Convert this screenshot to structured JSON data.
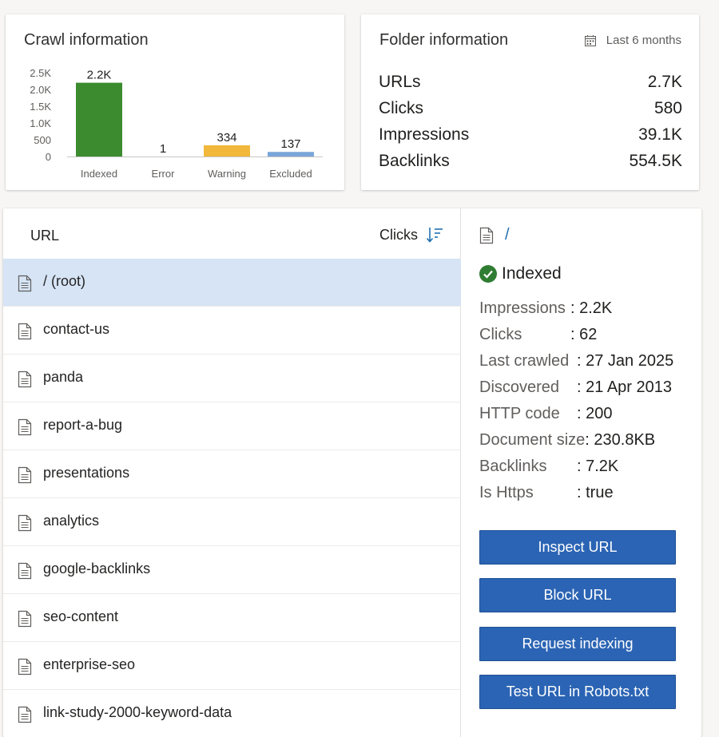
{
  "crawl": {
    "title": "Crawl information"
  },
  "chart_data": {
    "type": "bar",
    "categories": [
      "Indexed",
      "Error",
      "Warning",
      "Excluded"
    ],
    "values": [
      2200,
      1,
      334,
      137
    ],
    "data_labels": [
      "2.2K",
      "1",
      "334",
      "137"
    ],
    "colors": [
      "#3d8b2f",
      "#3d8b2f",
      "#f2b83c",
      "#7aa6d9"
    ],
    "yticks": [
      "0",
      "500",
      "1.0K",
      "1.5K",
      "2.0K",
      "2.5K"
    ],
    "ylim": [
      0,
      2500
    ],
    "title": "",
    "xlabel": "",
    "ylabel": "",
    "legend": "none",
    "grid": false
  },
  "folder": {
    "title": "Folder information",
    "date_filter": "Last 6 months",
    "rows": [
      {
        "label": "URLs",
        "value": "2.7K"
      },
      {
        "label": "Clicks",
        "value": "580"
      },
      {
        "label": "Impressions",
        "value": "39.1K"
      },
      {
        "label": "Backlinks",
        "value": "554.5K"
      }
    ]
  },
  "list": {
    "header_url": "URL",
    "header_clicks": "Clicks",
    "rows": [
      {
        "label": "/ (root)"
      },
      {
        "label": "contact-us"
      },
      {
        "label": "panda"
      },
      {
        "label": "report-a-bug"
      },
      {
        "label": "presentations"
      },
      {
        "label": "analytics"
      },
      {
        "label": "google-backlinks"
      },
      {
        "label": "seo-content"
      },
      {
        "label": "enterprise-seo"
      },
      {
        "label": "link-study-2000-keyword-data"
      }
    ]
  },
  "detail": {
    "path": "/",
    "status": "Indexed",
    "status_color": "#2f7d32",
    "props": [
      {
        "key": "Impressions",
        "value": ": 2.2K"
      },
      {
        "key": "Clicks",
        "value": ": 62"
      },
      {
        "key": "Last crawled",
        "value": ": 27 Jan 2025"
      },
      {
        "key": "Discovered",
        "value": ": 21 Apr 2013"
      },
      {
        "key": "HTTP code",
        "value": ": 200"
      },
      {
        "key": "Document size",
        "value": ": 230.8KB"
      },
      {
        "key": "Backlinks",
        "value": ": 7.2K"
      },
      {
        "key": "Is Https",
        "value": ": true"
      }
    ],
    "buttons": {
      "inspect": "Inspect URL",
      "block": "Block URL",
      "request": "Request indexing",
      "robots": "Test URL in Robots.txt"
    }
  },
  "colors": {
    "accent": "#2b64b4",
    "selected_row": "#d6e4f5",
    "link": "#1f6fb2"
  }
}
